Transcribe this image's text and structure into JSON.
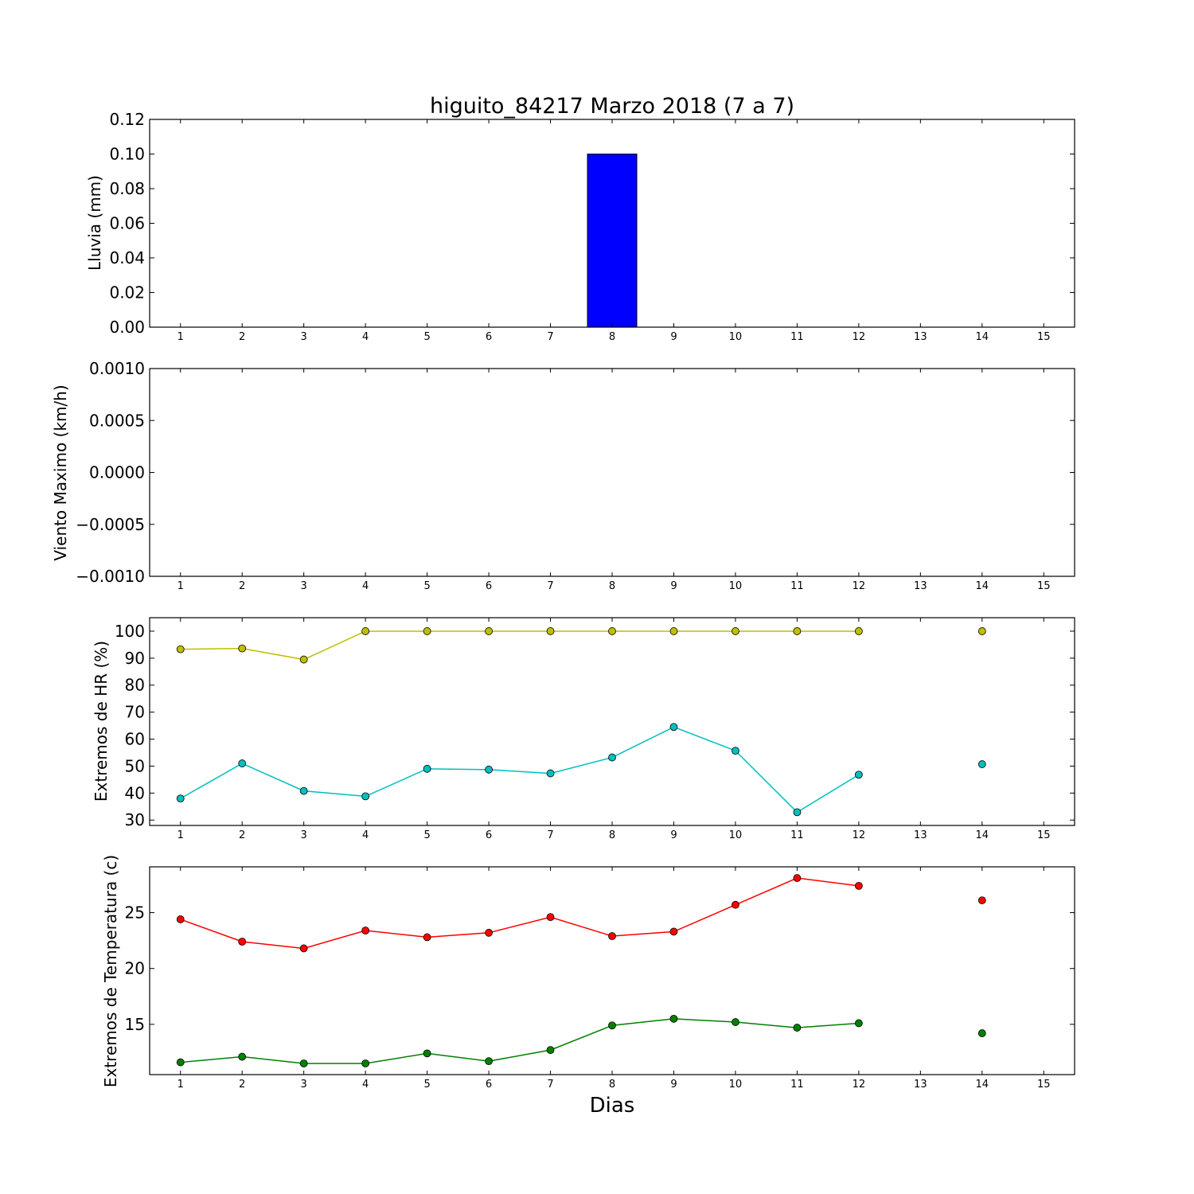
{
  "figure_title": "higuito_84217 Marzo 2018  (7 a 7)",
  "xlabel": "Dias",
  "chart_data": [
    {
      "type": "bar",
      "ylabel": "Lluvia (mm)",
      "x": [
        1,
        2,
        3,
        4,
        5,
        6,
        7,
        8,
        9,
        10,
        11,
        12,
        13,
        14,
        15
      ],
      "xticks": [
        "1",
        "2",
        "3",
        "4",
        "5",
        "6",
        "7",
        "8",
        "9",
        "10",
        "11",
        "12",
        "13",
        "14",
        "15"
      ],
      "xlim": [
        0.5,
        15.5
      ],
      "ylim": [
        0,
        0.12
      ],
      "yticks": [
        "0.00",
        "0.02",
        "0.04",
        "0.06",
        "0.08",
        "0.10",
        "0.12"
      ],
      "series": [
        {
          "values": [
            0,
            0,
            0,
            0,
            0,
            0,
            0,
            0.1,
            0,
            0,
            0,
            0,
            0,
            0,
            0
          ],
          "color": "#0000ff"
        }
      ]
    },
    {
      "type": "line",
      "ylabel": "Viento Maximo (km/h)",
      "x": [
        1,
        2,
        3,
        4,
        5,
        6,
        7,
        8,
        9,
        10,
        11,
        12,
        13,
        14,
        15
      ],
      "xticks": [
        "1",
        "2",
        "3",
        "4",
        "5",
        "6",
        "7",
        "8",
        "9",
        "10",
        "11",
        "12",
        "13",
        "14",
        "15"
      ],
      "xlim": [
        0.5,
        15.5
      ],
      "ylim": [
        -0.001,
        0.001
      ],
      "yticks": [
        "−0.0010",
        "−0.0005",
        "0.0000",
        "0.0005",
        "0.0010"
      ],
      "series": []
    },
    {
      "type": "line",
      "ylabel": "Extremos de HR (%)",
      "x": [
        1,
        2,
        3,
        4,
        5,
        6,
        7,
        8,
        9,
        10,
        11,
        12,
        13,
        14,
        15
      ],
      "xticks": [
        "1",
        "2",
        "3",
        "4",
        "5",
        "6",
        "7",
        "8",
        "9",
        "10",
        "11",
        "12",
        "13",
        "14",
        "15"
      ],
      "xlim": [
        0.5,
        15.5
      ],
      "ylim": [
        28,
        105
      ],
      "yticks": [
        "30",
        "40",
        "50",
        "60",
        "70",
        "80",
        "90",
        "100"
      ],
      "series": [
        {
          "values": [
            93.3,
            93.6,
            89.5,
            100,
            100,
            100,
            100,
            100,
            100,
            100,
            100,
            100,
            null,
            100,
            null
          ],
          "color": "#bfbf00"
        },
        {
          "values": [
            38,
            51,
            40.8,
            38.8,
            49,
            48.7,
            47.3,
            53.2,
            64.5,
            55.7,
            32.9,
            46.8,
            null,
            50.7,
            null
          ],
          "color": "#00bfbf"
        }
      ]
    },
    {
      "type": "line",
      "ylabel": "Extremos de Temperatura (c)",
      "x": [
        1,
        2,
        3,
        4,
        5,
        6,
        7,
        8,
        9,
        10,
        11,
        12,
        13,
        14,
        15
      ],
      "xticks": [
        "1",
        "2",
        "3",
        "4",
        "5",
        "6",
        "7",
        "8",
        "9",
        "10",
        "11",
        "12",
        "13",
        "14",
        "15"
      ],
      "xlim": [
        0.5,
        15.5
      ],
      "ylim": [
        10.5,
        29.1
      ],
      "yticks": [
        "15",
        "20",
        "25"
      ],
      "series": [
        {
          "values": [
            24.4,
            22.4,
            21.8,
            23.4,
            22.8,
            23.2,
            24.6,
            22.9,
            23.3,
            25.7,
            28.1,
            27.4,
            null,
            26.1,
            null
          ],
          "color": "#ff0000"
        },
        {
          "values": [
            11.6,
            12.1,
            11.5,
            11.5,
            12.4,
            11.7,
            12.7,
            14.9,
            15.5,
            15.2,
            14.7,
            15.1,
            null,
            14.2,
            null
          ],
          "color": "#008000"
        }
      ]
    }
  ]
}
